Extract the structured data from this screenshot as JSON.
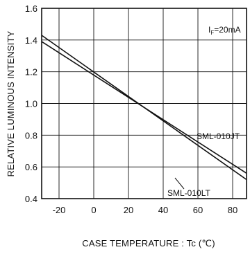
{
  "chart_data": {
    "type": "line",
    "title": "",
    "xlabel": "CASE TEMPERATURE : Tc (℃)",
    "ylabel": "RELATIVE LUMINOUS INTENSITY",
    "xlim": [
      -30,
      88
    ],
    "ylim": [
      0.4,
      1.6
    ],
    "xticks": [
      -20,
      0,
      20,
      40,
      60,
      80
    ],
    "yticks": [
      0.4,
      0.6,
      0.8,
      1.0,
      1.2,
      1.4,
      1.6
    ],
    "xtick_labels": [
      "-20",
      "0",
      "20",
      "40",
      "60",
      "80"
    ],
    "ytick_labels": [
      "0.4",
      "0.6",
      "0.8",
      "1.0",
      "1.2",
      "1.4",
      "1.6"
    ],
    "grid": true,
    "condition": {
      "main": "I",
      "sub": "F",
      "rest": "=20mA"
    },
    "series": [
      {
        "name": "SML-010JT",
        "x": [
          -30,
          88
        ],
        "y": [
          1.39,
          0.56
        ],
        "color": "#111111"
      },
      {
        "name": "SML-010LT",
        "x": [
          -30,
          88
        ],
        "y": [
          1.43,
          0.52
        ],
        "color": "#111111"
      }
    ]
  }
}
